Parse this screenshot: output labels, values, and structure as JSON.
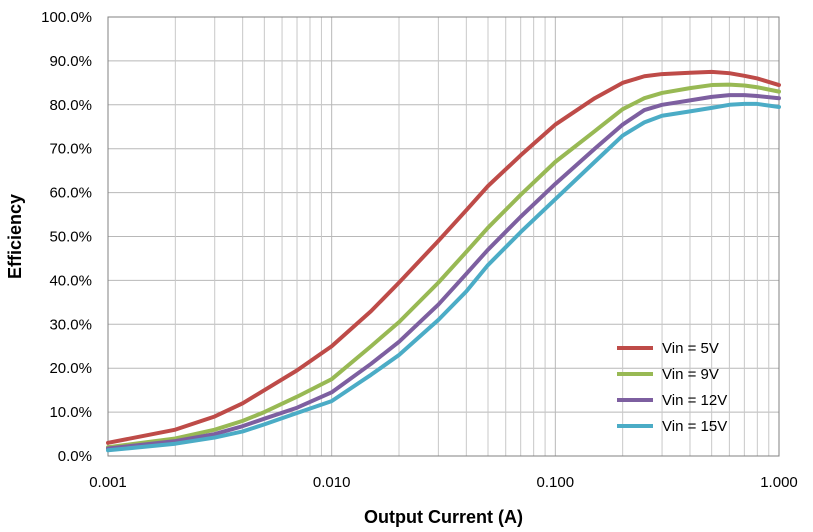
{
  "chart_data": {
    "type": "line",
    "xscale": "log",
    "xlim": [
      0.001,
      1.0
    ],
    "ylim": [
      0,
      100
    ],
    "grid": true,
    "legend_position": "lower-right",
    "xlabel": "Output Current (A)",
    "ylabel": "Efficiency",
    "x_ticks": [
      0.001,
      0.01,
      0.1,
      1.0
    ],
    "x_tick_labels": [
      "0.001",
      "0.010",
      "0.100",
      "1.000"
    ],
    "y_ticks": [
      0,
      10,
      20,
      30,
      40,
      50,
      60,
      70,
      80,
      90,
      100
    ],
    "y_tick_labels": [
      "0.0%",
      "10.0%",
      "20.0%",
      "30.0%",
      "40.0%",
      "50.0%",
      "60.0%",
      "70.0%",
      "80.0%",
      "90.0%",
      "100.0%"
    ],
    "x": [
      0.001,
      0.002,
      0.003,
      0.004,
      0.005,
      0.007,
      0.01,
      0.015,
      0.02,
      0.03,
      0.04,
      0.05,
      0.07,
      0.1,
      0.15,
      0.2,
      0.25,
      0.3,
      0.4,
      0.5,
      0.6,
      0.7,
      0.8,
      1.0
    ],
    "series": [
      {
        "name": "Vin = 5V",
        "color": "#be4b48",
        "values": [
          3.0,
          6.0,
          9.0,
          12.0,
          15.0,
          19.5,
          25.0,
          33.0,
          39.5,
          49.0,
          56.0,
          61.5,
          68.5,
          75.5,
          81.5,
          85.0,
          86.5,
          87.0,
          87.3,
          87.5,
          87.2,
          86.6,
          86.0,
          84.5
        ]
      },
      {
        "name": "Vin = 9V",
        "color": "#98b954",
        "values": [
          2.0,
          4.0,
          6.0,
          8.0,
          10.0,
          13.5,
          17.5,
          25.0,
          30.5,
          39.5,
          46.5,
          52.0,
          59.5,
          67.0,
          74.0,
          79.0,
          81.5,
          82.7,
          83.8,
          84.5,
          84.6,
          84.4,
          84.0,
          83.0
        ]
      },
      {
        "name": "Vin = 12V",
        "color": "#7d5fa0",
        "values": [
          1.7,
          3.4,
          5.0,
          6.8,
          8.5,
          11.0,
          14.5,
          21.0,
          26.0,
          34.5,
          41.5,
          47.0,
          54.5,
          62.0,
          70.0,
          75.5,
          78.8,
          80.0,
          81.0,
          81.8,
          82.2,
          82.2,
          82.0,
          81.5
        ]
      },
      {
        "name": "Vin = 15V",
        "color": "#4bacc6",
        "values": [
          1.3,
          2.8,
          4.2,
          5.6,
          7.2,
          9.8,
          12.5,
          18.5,
          23.0,
          31.0,
          37.5,
          43.5,
          51.0,
          58.5,
          67.0,
          73.0,
          76.0,
          77.5,
          78.5,
          79.3,
          80.0,
          80.2,
          80.2,
          79.5
        ]
      }
    ]
  }
}
